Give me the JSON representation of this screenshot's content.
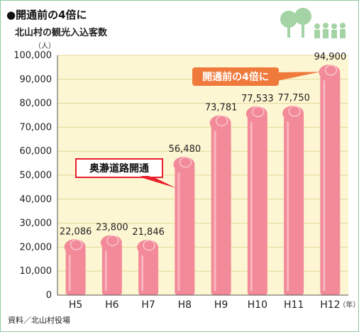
{
  "header": {
    "title": "●開通前の4倍に",
    "subtitle": "北山村の観光入込客数"
  },
  "footer": {
    "source": "資料／北山村役場"
  },
  "chart_data": {
    "type": "bar",
    "ylabel": "（人）",
    "xunit": "（年）",
    "categories": [
      "H5",
      "H6",
      "H7",
      "H8",
      "H9",
      "H10",
      "H11",
      "H12"
    ],
    "values": [
      22086,
      23800,
      21846,
      56480,
      73781,
      77533,
      77750,
      94900
    ],
    "value_labels": [
      "22,086",
      "23,800",
      "21,846",
      "56,480",
      "73,781",
      "77,533",
      "77,750",
      "94,900"
    ],
    "ylim": [
      0,
      100000
    ],
    "yticks": [
      0,
      10000,
      20000,
      30000,
      40000,
      50000,
      60000,
      70000,
      80000,
      90000,
      100000
    ],
    "ytick_labels": [
      "0",
      "10,000",
      "20,000",
      "30,000",
      "40,000",
      "50,000",
      "60,000",
      "70,000",
      "80,000",
      "90,000",
      "100,000"
    ],
    "grid": true,
    "colors": {
      "plot_bg": "#fdf6d2",
      "grid": "#e3d79a",
      "bar": "#f28a99",
      "bar_highlight": "#fbd3d9",
      "callout_orange": "#ef7a3c",
      "callout_red": "#ea1f2c",
      "deco_green": "#a4d4a5"
    },
    "annotations": [
      {
        "text": "開通前の4倍に",
        "style": "filled-orange"
      },
      {
        "text": "奥瀞道路開通",
        "style": "outlined-red"
      }
    ]
  }
}
